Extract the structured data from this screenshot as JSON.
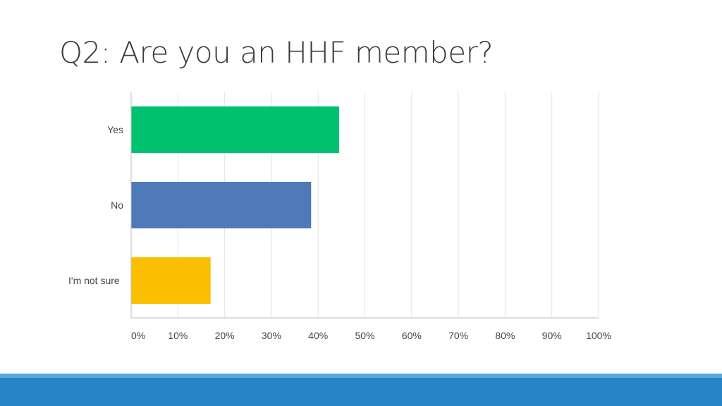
{
  "slide": {
    "title": "Q2: Are you an HHF member?"
  },
  "chart_data": {
    "type": "bar",
    "orientation": "horizontal",
    "categories": [
      "Yes",
      "No",
      "I'm not sure"
    ],
    "values": [
      44.5,
      38.5,
      17
    ],
    "unit": "%",
    "xlim": [
      0,
      100
    ],
    "xticks": [
      0,
      10,
      20,
      30,
      40,
      50,
      60,
      70,
      80,
      90,
      100
    ],
    "xtick_labels": [
      "0%",
      "10%",
      "20%",
      "30%",
      "40%",
      "50%",
      "60%",
      "70%",
      "80%",
      "90%",
      "100%"
    ],
    "colors": [
      "#00c170",
      "#4f7ab8",
      "#fbbe00"
    ],
    "grid": true,
    "legend": "none"
  },
  "theme": {
    "footer_color": "#2683c6",
    "footer_accent": "#5aa9e0"
  }
}
